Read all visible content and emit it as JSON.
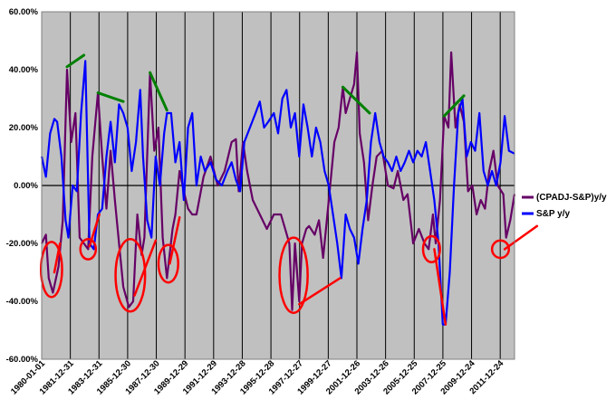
{
  "chart_data": {
    "type": "line",
    "title": "",
    "xlabel": "",
    "ylabel": "",
    "ylim": [
      -60,
      60
    ],
    "y_ticks": [
      "60.00%",
      "40.00%",
      "20.00%",
      "0.00%",
      "-20.00%",
      "-40.00%",
      "-60.00%"
    ],
    "x_ticks": [
      "1980-01-01",
      "1981-12-31",
      "1983-12-31",
      "1985-12-30",
      "1987-12-30",
      "1989-12-29",
      "1991-12-29",
      "1993-12-28",
      "1995-12-28",
      "1997-12-27",
      "1999-12-27",
      "2001-12-26",
      "2003-12-26",
      "2005-12-25",
      "2007-12-25",
      "2009-12-24",
      "2011-12-24"
    ],
    "x_range": [
      1980.0,
      2013.6
    ],
    "plot_background": "#c0c0c0",
    "grid": "vertical",
    "legend_position": "right",
    "series": [
      {
        "name": "(CPADJ-S&P)y/y",
        "color": "#660066",
        "points": [
          [
            1980.0,
            -20
          ],
          [
            1980.3,
            -17
          ],
          [
            1980.5,
            -32
          ],
          [
            1980.8,
            -37
          ],
          [
            1981.2,
            -28
          ],
          [
            1981.5,
            -12
          ],
          [
            1981.8,
            40
          ],
          [
            1982.1,
            15
          ],
          [
            1982.4,
            25
          ],
          [
            1982.7,
            -18
          ],
          [
            1983.0,
            -20
          ],
          [
            1983.3,
            -22
          ],
          [
            1983.6,
            10
          ],
          [
            1984.0,
            32
          ],
          [
            1984.3,
            10
          ],
          [
            1984.6,
            -8
          ],
          [
            1984.9,
            12
          ],
          [
            1985.2,
            -5
          ],
          [
            1985.5,
            -20
          ],
          [
            1985.8,
            -35
          ],
          [
            1986.2,
            -42
          ],
          [
            1986.5,
            -40
          ],
          [
            1986.8,
            -10
          ],
          [
            1987.1,
            -24
          ],
          [
            1987.3,
            -18
          ],
          [
            1987.7,
            39
          ],
          [
            1988.0,
            12
          ],
          [
            1988.3,
            20
          ],
          [
            1988.6,
            -18
          ],
          [
            1988.9,
            -32
          ],
          [
            1989.3,
            -15
          ],
          [
            1989.5,
            -10
          ],
          [
            1989.8,
            5
          ],
          [
            1990.1,
            -2
          ],
          [
            1990.4,
            -8
          ],
          [
            1990.7,
            -10
          ],
          [
            1991.0,
            -10
          ],
          [
            1991.5,
            3
          ],
          [
            1992.0,
            10
          ],
          [
            1992.5,
            0
          ],
          [
            1993.0,
            5
          ],
          [
            1993.5,
            15
          ],
          [
            1993.8,
            16
          ],
          [
            1994.0,
            -2
          ],
          [
            1994.3,
            15
          ],
          [
            1994.6,
            5
          ],
          [
            1995.0,
            -5
          ],
          [
            1995.5,
            -10
          ],
          [
            1996.0,
            -15
          ],
          [
            1996.5,
            -10
          ],
          [
            1997.0,
            -10
          ],
          [
            1997.3,
            -15
          ],
          [
            1997.6,
            -20
          ],
          [
            1997.8,
            -43
          ],
          [
            1998.0,
            -20
          ],
          [
            1998.3,
            -40
          ],
          [
            1998.5,
            -20
          ],
          [
            1998.8,
            -15
          ],
          [
            1999.0,
            -14
          ],
          [
            1999.4,
            -17
          ],
          [
            1999.7,
            -12
          ],
          [
            2000.0,
            -25
          ],
          [
            2000.3,
            -10
          ],
          [
            2000.5,
            0
          ],
          [
            2000.8,
            15
          ],
          [
            2001.1,
            20
          ],
          [
            2001.4,
            34
          ],
          [
            2001.6,
            25
          ],
          [
            2001.9,
            30
          ],
          [
            2002.2,
            35
          ],
          [
            2002.4,
            46
          ],
          [
            2002.6,
            18
          ],
          [
            2002.9,
            8
          ],
          [
            2003.2,
            -12
          ],
          [
            2003.5,
            0
          ],
          [
            2003.8,
            10
          ],
          [
            2004.2,
            12
          ],
          [
            2004.6,
            0
          ],
          [
            2005.0,
            -1
          ],
          [
            2005.3,
            5
          ],
          [
            2005.7,
            -5
          ],
          [
            2006.0,
            -3
          ],
          [
            2006.4,
            -20
          ],
          [
            2006.8,
            -15
          ],
          [
            2007.2,
            -20
          ],
          [
            2007.5,
            -22
          ],
          [
            2007.8,
            -10
          ],
          [
            2008.0,
            -20
          ],
          [
            2008.3,
            -5
          ],
          [
            2008.6,
            24
          ],
          [
            2008.9,
            20
          ],
          [
            2009.1,
            46
          ],
          [
            2009.4,
            20
          ],
          [
            2009.7,
            28
          ],
          [
            2010.0,
            22
          ],
          [
            2010.3,
            -2
          ],
          [
            2010.6,
            0
          ],
          [
            2010.9,
            -10
          ],
          [
            2011.2,
            -5
          ],
          [
            2011.5,
            -8
          ],
          [
            2011.8,
            5
          ],
          [
            2012.1,
            12
          ],
          [
            2012.4,
            0
          ],
          [
            2012.8,
            -3
          ],
          [
            2013.0,
            -18
          ],
          [
            2013.3,
            -12
          ],
          [
            2013.6,
            -3
          ]
        ]
      },
      {
        "name": "S&P y/y",
        "color": "#0000ff",
        "points": [
          [
            1980.0,
            10
          ],
          [
            1980.3,
            3
          ],
          [
            1980.6,
            18
          ],
          [
            1980.9,
            23
          ],
          [
            1981.1,
            22
          ],
          [
            1981.4,
            10
          ],
          [
            1981.7,
            -12
          ],
          [
            1981.9,
            -18
          ],
          [
            1982.2,
            0
          ],
          [
            1982.5,
            -2
          ],
          [
            1982.8,
            25
          ],
          [
            1983.1,
            43
          ],
          [
            1983.4,
            -20
          ],
          [
            1983.7,
            -22
          ],
          [
            1984.0,
            -10
          ],
          [
            1984.3,
            -8
          ],
          [
            1984.6,
            10
          ],
          [
            1984.9,
            22
          ],
          [
            1985.2,
            8
          ],
          [
            1985.5,
            28
          ],
          [
            1985.8,
            25
          ],
          [
            1986.1,
            20
          ],
          [
            1986.4,
            5
          ],
          [
            1986.7,
            15
          ],
          [
            1987.0,
            33
          ],
          [
            1987.2,
            10
          ],
          [
            1987.5,
            -12
          ],
          [
            1987.8,
            -18
          ],
          [
            1988.1,
            10
          ],
          [
            1988.4,
            0
          ],
          [
            1988.7,
            18
          ],
          [
            1988.9,
            25
          ],
          [
            1989.2,
            25
          ],
          [
            1989.5,
            8
          ],
          [
            1989.8,
            15
          ],
          [
            1990.1,
            -5
          ],
          [
            1990.4,
            20
          ],
          [
            1990.7,
            25
          ],
          [
            1991.0,
            0
          ],
          [
            1991.3,
            10
          ],
          [
            1991.6,
            5
          ],
          [
            1992.0,
            8
          ],
          [
            1992.4,
            2
          ],
          [
            1992.8,
            0
          ],
          [
            1993.2,
            5
          ],
          [
            1993.5,
            8
          ],
          [
            1993.8,
            2
          ],
          [
            1994.1,
            -2
          ],
          [
            1994.4,
            15
          ],
          [
            1994.8,
            20
          ],
          [
            1995.2,
            25
          ],
          [
            1995.5,
            29
          ],
          [
            1995.8,
            20
          ],
          [
            1996.1,
            22
          ],
          [
            1996.5,
            25
          ],
          [
            1996.8,
            18
          ],
          [
            1997.1,
            30
          ],
          [
            1997.4,
            33
          ],
          [
            1997.7,
            20
          ],
          [
            1998.0,
            25
          ],
          [
            1998.3,
            10
          ],
          [
            1998.6,
            28
          ],
          [
            1998.9,
            20
          ],
          [
            1999.2,
            10
          ],
          [
            1999.5,
            20
          ],
          [
            1999.8,
            15
          ],
          [
            2000.1,
            5
          ],
          [
            2000.4,
            0
          ],
          [
            2000.7,
            -10
          ],
          [
            2001.0,
            -20
          ],
          [
            2001.3,
            -32
          ],
          [
            2001.6,
            -10
          ],
          [
            2001.9,
            -15
          ],
          [
            2002.2,
            -18
          ],
          [
            2002.5,
            -27
          ],
          [
            2002.8,
            -15
          ],
          [
            2003.1,
            -5
          ],
          [
            2003.4,
            15
          ],
          [
            2003.7,
            25
          ],
          [
            2004.0,
            15
          ],
          [
            2004.3,
            10
          ],
          [
            2004.6,
            8
          ],
          [
            2004.9,
            5
          ],
          [
            2005.2,
            10
          ],
          [
            2005.5,
            5
          ],
          [
            2005.8,
            8
          ],
          [
            2006.1,
            12
          ],
          [
            2006.4,
            8
          ],
          [
            2006.7,
            12
          ],
          [
            2007.0,
            10
          ],
          [
            2007.3,
            15
          ],
          [
            2007.6,
            5
          ],
          [
            2007.9,
            -5
          ],
          [
            2008.2,
            -20
          ],
          [
            2008.5,
            -48
          ],
          [
            2008.7,
            -48
          ],
          [
            2009.0,
            -30
          ],
          [
            2009.3,
            0
          ],
          [
            2009.6,
            25
          ],
          [
            2009.9,
            30
          ],
          [
            2010.2,
            10
          ],
          [
            2010.5,
            15
          ],
          [
            2010.8,
            12
          ],
          [
            2011.1,
            25
          ],
          [
            2011.4,
            5
          ],
          [
            2011.7,
            0
          ],
          [
            2012.0,
            5
          ],
          [
            2012.3,
            0
          ],
          [
            2012.6,
            8
          ],
          [
            2012.9,
            24
          ],
          [
            2013.2,
            12
          ],
          [
            2013.6,
            11
          ]
        ]
      }
    ],
    "annotations": {
      "green_trend_lines": [
        {
          "from": [
            1981.8,
            41
          ],
          "to": [
            1983.0,
            45
          ]
        },
        {
          "from": [
            1984.0,
            32
          ],
          "to": [
            1985.8,
            29
          ]
        },
        {
          "from": [
            1987.7,
            39
          ],
          "to": [
            1988.9,
            26
          ]
        },
        {
          "from": [
            2001.4,
            34
          ],
          "to": [
            2003.3,
            25
          ]
        },
        {
          "from": [
            2008.6,
            24
          ],
          "to": [
            2010.0,
            31
          ]
        }
      ],
      "red_circles": [
        {
          "center": [
            1980.7,
            -29
          ],
          "rx_years": 0.75,
          "ry_pct": 9.5
        },
        {
          "center": [
            1983.3,
            -22
          ],
          "rx_years": 0.55,
          "ry_pct": 3.5
        },
        {
          "center": [
            1986.3,
            -31
          ],
          "rx_years": 1.05,
          "ry_pct": 12.5
        },
        {
          "center": [
            1989.0,
            -27
          ],
          "rx_years": 0.7,
          "ry_pct": 6.5
        },
        {
          "center": [
            1997.9,
            -31
          ],
          "rx_years": 1.0,
          "ry_pct": 13.0
        },
        {
          "center": [
            2007.7,
            -22
          ],
          "rx_years": 0.6,
          "ry_pct": 4.5
        },
        {
          "center": [
            2012.6,
            -22
          ],
          "rx_years": 0.6,
          "ry_pct": 3.0
        }
      ],
      "red_pointer_lines": [
        {
          "from": [
            1981.3,
            -20
          ],
          "to": [
            1980.9,
            -30
          ]
        },
        {
          "from": [
            1984.1,
            -10
          ],
          "to": [
            1983.4,
            -21
          ]
        },
        {
          "from": [
            1988.1,
            -19
          ],
          "to": [
            1986.6,
            -38
          ]
        },
        {
          "from": [
            1989.8,
            -11
          ],
          "to": [
            1989.1,
            -27
          ]
        },
        {
          "from": [
            2001.2,
            -32
          ],
          "to": [
            1998.3,
            -41
          ]
        },
        {
          "from": [
            2007.9,
            -22
          ],
          "to": [
            2008.7,
            -48
          ]
        },
        {
          "from": [
            2015.2,
            -14
          ],
          "to": [
            2012.9,
            -22
          ]
        }
      ]
    }
  }
}
